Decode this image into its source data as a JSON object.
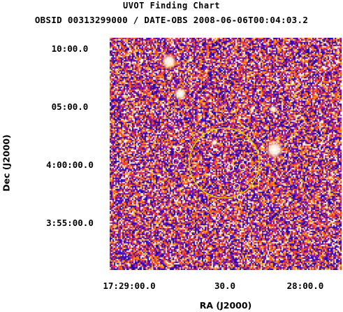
{
  "title": "UVOT Finding Chart",
  "subtitle": "OBSID 00313299000 / DATE-OBS 2008-06-06T00:04:03.2",
  "axes": {
    "x_label": "RA (J2000)",
    "y_label": "Dec (J2000)",
    "x_ticks": [
      "17:29:00.0",
      "30.0",
      "28:00.0"
    ],
    "y_ticks": [
      "10:00.0",
      "05:00.0",
      "4:00:00.0",
      "3:55:00.0"
    ]
  },
  "colors": {
    "sky_background": "#2a10c8",
    "sky_bright": "#ff6a10",
    "source_circle": "#ffffff",
    "target_circle": "#e8c800"
  },
  "image": {
    "type": "false-color sky image"
  }
}
